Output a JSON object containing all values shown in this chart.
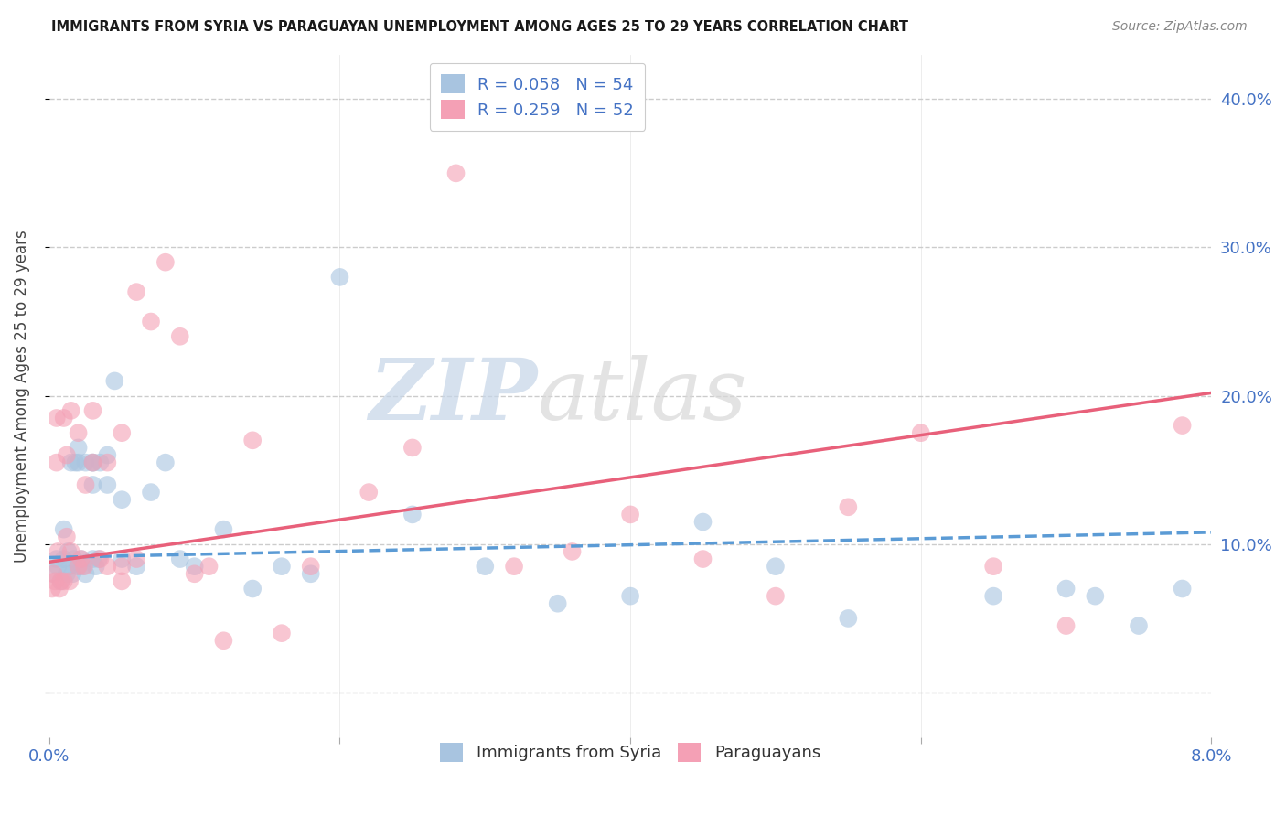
{
  "title": "IMMIGRANTS FROM SYRIA VS PARAGUAYAN UNEMPLOYMENT AMONG AGES 25 TO 29 YEARS CORRELATION CHART",
  "source": "Source: ZipAtlas.com",
  "ylabel": "Unemployment Among Ages 25 to 29 years",
  "xlim": [
    0.0,
    0.08
  ],
  "ylim": [
    -0.03,
    0.43
  ],
  "yticks": [
    0.0,
    0.1,
    0.2,
    0.3,
    0.4
  ],
  "xticks": [
    0.0,
    0.02,
    0.04,
    0.06,
    0.08
  ],
  "xtick_labels": [
    "0.0%",
    "",
    "",
    "",
    "8.0%"
  ],
  "ytick_labels_right": [
    "",
    "10.0%",
    "20.0%",
    "30.0%",
    "40.0%"
  ],
  "legend_r1": "0.058",
  "legend_n1": "54",
  "legend_r2": "0.259",
  "legend_n2": "52",
  "color_syria": "#a8c4e0",
  "color_paraguay": "#f4a0b5",
  "color_text_blue": "#4472c4",
  "color_line_syria": "#5b9bd5",
  "color_line_paraguay": "#e8607a",
  "watermark_zip": "ZIP",
  "watermark_atlas": "atlas",
  "background_color": "#ffffff",
  "grid_color": "#cccccc",
  "syria_scatter_x": [
    0.0003,
    0.0005,
    0.0006,
    0.0008,
    0.001,
    0.001,
    0.0012,
    0.0013,
    0.0014,
    0.0015,
    0.0016,
    0.0017,
    0.0018,
    0.002,
    0.002,
    0.002,
    0.0022,
    0.0023,
    0.0025,
    0.0025,
    0.003,
    0.003,
    0.003,
    0.003,
    0.0032,
    0.0034,
    0.0035,
    0.004,
    0.004,
    0.0045,
    0.005,
    0.005,
    0.006,
    0.007,
    0.008,
    0.009,
    0.01,
    0.012,
    0.014,
    0.016,
    0.018,
    0.02,
    0.025,
    0.03,
    0.035,
    0.04,
    0.045,
    0.05,
    0.055,
    0.065,
    0.07,
    0.072,
    0.075,
    0.078
  ],
  "syria_scatter_y": [
    0.08,
    0.09,
    0.085,
    0.075,
    0.09,
    0.11,
    0.08,
    0.095,
    0.085,
    0.155,
    0.08,
    0.09,
    0.155,
    0.085,
    0.155,
    0.165,
    0.09,
    0.085,
    0.08,
    0.155,
    0.155,
    0.14,
    0.09,
    0.155,
    0.085,
    0.09,
    0.155,
    0.16,
    0.14,
    0.21,
    0.09,
    0.13,
    0.085,
    0.135,
    0.155,
    0.09,
    0.085,
    0.11,
    0.07,
    0.085,
    0.08,
    0.28,
    0.12,
    0.085,
    0.06,
    0.065,
    0.115,
    0.085,
    0.05,
    0.065,
    0.07,
    0.065,
    0.045,
    0.07
  ],
  "paraguay_scatter_x": [
    0.0002,
    0.0003,
    0.0004,
    0.0005,
    0.0005,
    0.0006,
    0.0007,
    0.0008,
    0.001,
    0.001,
    0.0012,
    0.0012,
    0.0014,
    0.0015,
    0.0015,
    0.002,
    0.002,
    0.0022,
    0.0024,
    0.0025,
    0.003,
    0.003,
    0.0035,
    0.004,
    0.004,
    0.005,
    0.005,
    0.005,
    0.006,
    0.006,
    0.007,
    0.008,
    0.009,
    0.01,
    0.011,
    0.012,
    0.014,
    0.016,
    0.018,
    0.022,
    0.025,
    0.028,
    0.032,
    0.036,
    0.04,
    0.045,
    0.05,
    0.055,
    0.06,
    0.065,
    0.07,
    0.078
  ],
  "paraguay_scatter_y": [
    0.07,
    0.08,
    0.075,
    0.155,
    0.185,
    0.095,
    0.07,
    0.075,
    0.185,
    0.075,
    0.16,
    0.105,
    0.075,
    0.095,
    0.19,
    0.085,
    0.175,
    0.09,
    0.085,
    0.14,
    0.155,
    0.19,
    0.09,
    0.155,
    0.085,
    0.075,
    0.175,
    0.085,
    0.27,
    0.09,
    0.25,
    0.29,
    0.24,
    0.08,
    0.085,
    0.035,
    0.17,
    0.04,
    0.085,
    0.135,
    0.165,
    0.35,
    0.085,
    0.095,
    0.12,
    0.09,
    0.065,
    0.125,
    0.175,
    0.085,
    0.045,
    0.18
  ],
  "syria_trend_x": [
    0.0,
    0.08
  ],
  "syria_trend_y": [
    0.091,
    0.108
  ],
  "paraguay_trend_x": [
    0.0,
    0.08
  ],
  "paraguay_trend_y": [
    0.088,
    0.202
  ],
  "legend_labels": [
    "Immigrants from Syria",
    "Paraguayans"
  ]
}
